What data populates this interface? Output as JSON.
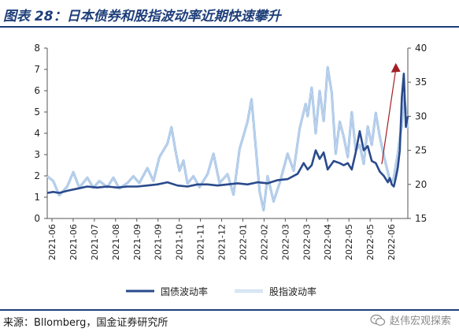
{
  "figure": {
    "title": "图表 28：日本债券和股指波动率近期快速攀升",
    "source": "来源：Bllomberg，国金证券研究所",
    "watermark": "赵伟宏观探索"
  },
  "colors": {
    "bond": "#2a4a8c",
    "equity": "#7aa6d8",
    "arrow": "#a31f24",
    "rule": "#1f3f7a"
  },
  "chart_data": {
    "type": "line",
    "x_ticks": [
      "2021-06",
      "2021-06",
      "2021-07",
      "2021-08",
      "2021-09",
      "2021-09",
      "2021-10",
      "2021-11",
      "2021-12",
      "2022-01",
      "2022-02",
      "2022-03",
      "2022-03",
      "2022-04",
      "2022-05",
      "2022-05",
      "2022-06"
    ],
    "y_left": {
      "min": 0,
      "max": 8,
      "ticks": [
        0,
        1,
        2,
        3,
        4,
        5,
        6,
        7,
        8
      ]
    },
    "y_right": {
      "min": 15,
      "max": 40,
      "ticks": [
        15,
        20,
        25,
        30,
        35,
        40
      ]
    },
    "series": [
      {
        "name": "国债波动率",
        "axis": "left",
        "x": [
          0,
          0.3,
          0.6,
          1,
          1.5,
          2,
          2.5,
          3,
          3.5,
          4,
          4.5,
          5,
          5.5,
          6,
          6.5,
          7,
          7.5,
          8,
          8.5,
          9,
          9.5,
          10,
          10.5,
          11,
          11.5,
          12,
          12.5,
          12.8,
          13,
          13.2,
          13.4,
          13.6,
          13.8,
          14,
          14.3,
          14.6,
          14.8,
          15,
          15.2,
          15.4,
          15.6,
          15.8,
          16,
          16.2,
          16.4,
          16.6,
          16.8,
          17,
          17.1,
          17.2,
          17.3,
          17.4,
          17.5,
          17.6,
          17.7,
          17.8,
          17.9,
          18
        ],
        "values": [
          1.2,
          1.25,
          1.2,
          1.3,
          1.4,
          1.5,
          1.45,
          1.5,
          1.45,
          1.5,
          1.5,
          1.55,
          1.6,
          1.7,
          1.55,
          1.5,
          1.6,
          1.6,
          1.55,
          1.6,
          1.65,
          1.6,
          1.7,
          1.65,
          1.8,
          1.85,
          2.1,
          2.6,
          2.3,
          2.5,
          3.2,
          2.8,
          3.1,
          2.3,
          2.7,
          2.6,
          2.5,
          2.6,
          2.3,
          3.1,
          4.1,
          3.2,
          3.4,
          2.7,
          2.6,
          2.2,
          2.0,
          1.7,
          1.9,
          1.6,
          1.5,
          1.9,
          2.4,
          3.2,
          5.7,
          6.8,
          4.3,
          4.8
        ]
      },
      {
        "name": "股指波动率",
        "axis": "right",
        "x": [
          0,
          0.3,
          0.6,
          1,
          1.3,
          1.6,
          2,
          2.3,
          2.6,
          3,
          3.3,
          3.6,
          4,
          4.3,
          4.6,
          5,
          5.3,
          5.6,
          6,
          6.2,
          6.4,
          6.6,
          6.8,
          7,
          7.3,
          7.6,
          8,
          8.3,
          8.6,
          9,
          9.3,
          9.6,
          10,
          10.2,
          10.4,
          10.6,
          10.8,
          11,
          11.3,
          11.6,
          12,
          12.3,
          12.6,
          12.9,
          13,
          13.2,
          13.4,
          13.6,
          13.8,
          14,
          14.2,
          14.4,
          14.6,
          14.8,
          15,
          15.2,
          15.4,
          15.6,
          15.8,
          16,
          16.2,
          16.4,
          16.6,
          16.8,
          17,
          17.1,
          17.2,
          17.3,
          17.4,
          17.5,
          17.6,
          17.7,
          17.8,
          17.9,
          18
        ],
        "values": [
          21.2,
          20.5,
          18.4,
          19.7,
          21.8,
          19.5,
          21,
          19.5,
          20.5,
          19.6,
          21,
          19.4,
          20.2,
          21.2,
          20.2,
          22.4,
          20.5,
          24,
          26,
          28.4,
          25,
          22,
          23.5,
          20.1,
          21.2,
          19.6,
          21.5,
          24.5,
          20.2,
          21.5,
          18.5,
          25.2,
          29.2,
          32.5,
          25.8,
          19,
          16.2,
          21.2,
          17.5,
          20.2,
          24.5,
          22,
          28.2,
          31.8,
          30,
          34.2,
          27.5,
          33.7,
          29.3,
          37.2,
          33.5,
          24.5,
          29.2,
          27,
          24,
          30.6,
          25,
          25.8,
          23,
          28.5,
          25.8,
          30.5,
          27,
          24.2,
          21.8,
          20.5,
          20.4,
          21,
          22.8,
          24.5,
          26.8,
          28.6,
          33,
          31,
          28.2
        ]
      }
    ]
  }
}
